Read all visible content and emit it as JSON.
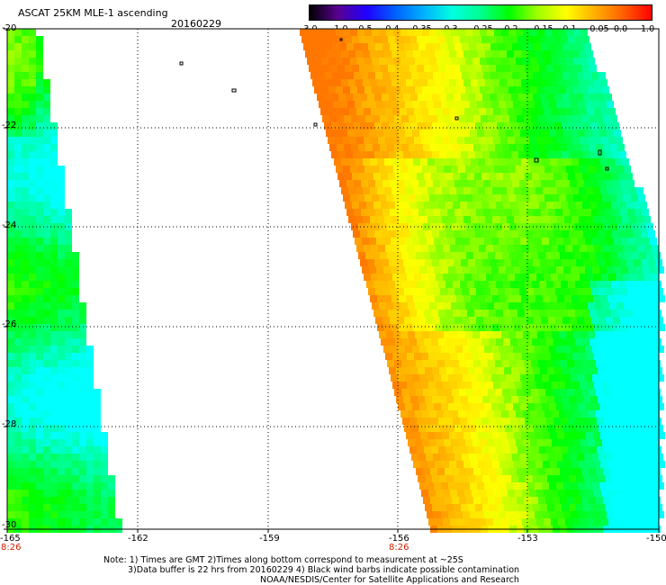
{
  "header": {
    "title": "ASCAT 25KM MLE-1 ascending",
    "date": "20160229"
  },
  "colorbar": {
    "labels": [
      "-3.0",
      "-1.0",
      "-0.5",
      "-0.4",
      "-0.35",
      "-0.3",
      "-0.25",
      "-0.2",
      "-0.15",
      "-0.1",
      "-0.05",
      "0.0",
      "1.0"
    ],
    "colors": [
      "#000000",
      "#5a0090",
      "#2000ff",
      "#0060ff",
      "#00b0ff",
      "#00ffe0",
      "#00ff90",
      "#00ff00",
      "#a0ff00",
      "#ffff00",
      "#ffb000",
      "#ff6000",
      "#ff0000"
    ]
  },
  "axes": {
    "y_labels": [
      "-20",
      "-22",
      "-24",
      "-26",
      "-28",
      "-30"
    ],
    "x_labels": [
      "-165",
      "-162",
      "-159",
      "-156",
      "-153",
      "-150"
    ],
    "time_markers": [
      {
        "lon": "-165",
        "text": "8:26"
      },
      {
        "lon": "-156",
        "text": "8:26"
      }
    ],
    "lat_range": [
      -30,
      -20
    ],
    "lon_range": [
      -165,
      -150
    ],
    "grid": "dotted"
  },
  "notes": {
    "line1": "Note: 1) Times are GMT 2)Times along bottom correspond to measurement at ~25S",
    "line2": "3)Data buffer is 22 hrs from 20160229 4) Black wind barbs indicate possible contamination",
    "line3": "NOAA/NESDIS/Center for Satellite Applications and Research"
  }
}
